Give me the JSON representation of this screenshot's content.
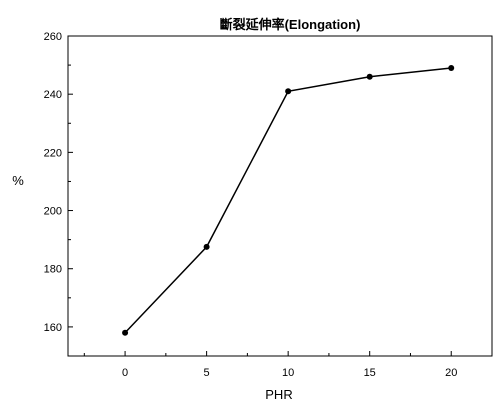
{
  "chart_data": {
    "type": "line",
    "title": "斷裂延伸率(Elongation)",
    "xlabel": "PHR",
    "ylabel": "%",
    "x": [
      0,
      5,
      10,
      15,
      20
    ],
    "series": [
      {
        "values": [
          158,
          187.5,
          241,
          246,
          249
        ],
        "color": "#000000"
      }
    ],
    "xlim": [
      -3.5,
      22.5
    ],
    "ylim": [
      150,
      260
    ],
    "xticks": [
      0,
      5,
      10,
      15,
      20
    ],
    "yticks": [
      160,
      180,
      200,
      220,
      240,
      260
    ],
    "grid": false,
    "legend": "none",
    "marker": "circle"
  }
}
